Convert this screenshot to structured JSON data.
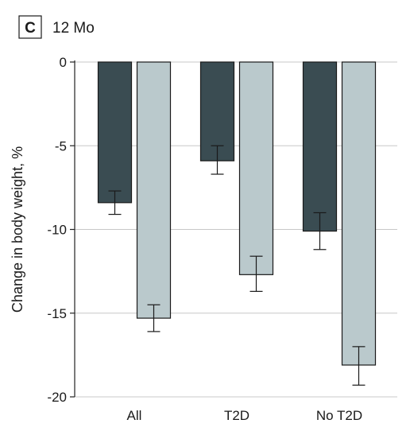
{
  "panel": {
    "letter": "C",
    "title": "12 Mo"
  },
  "chart_data": {
    "type": "bar",
    "categories": [
      "All",
      "T2D",
      "No T2D"
    ],
    "ylabel": "Change in body weight, %",
    "ylim": [
      -20,
      0
    ],
    "yticks": [
      0,
      -5,
      -10,
      -15,
      -20
    ],
    "ytick_labels": [
      "0",
      "-5",
      "-10",
      "-15",
      "-20"
    ],
    "grid": "horizontal",
    "colors": [
      "#3a4c52",
      "#bac9cc"
    ],
    "series": [
      {
        "values": [
          -8.4,
          -5.9,
          -10.1
        ],
        "error_low": [
          -9.1,
          -6.7,
          -11.2
        ],
        "error_high": [
          -7.7,
          -5.0,
          -9.0
        ]
      },
      {
        "values": [
          -15.3,
          -12.7,
          -18.1
        ],
        "error_low": [
          -16.1,
          -13.7,
          -19.3
        ],
        "error_high": [
          -14.5,
          -11.6,
          -17.0
        ]
      }
    ]
  }
}
